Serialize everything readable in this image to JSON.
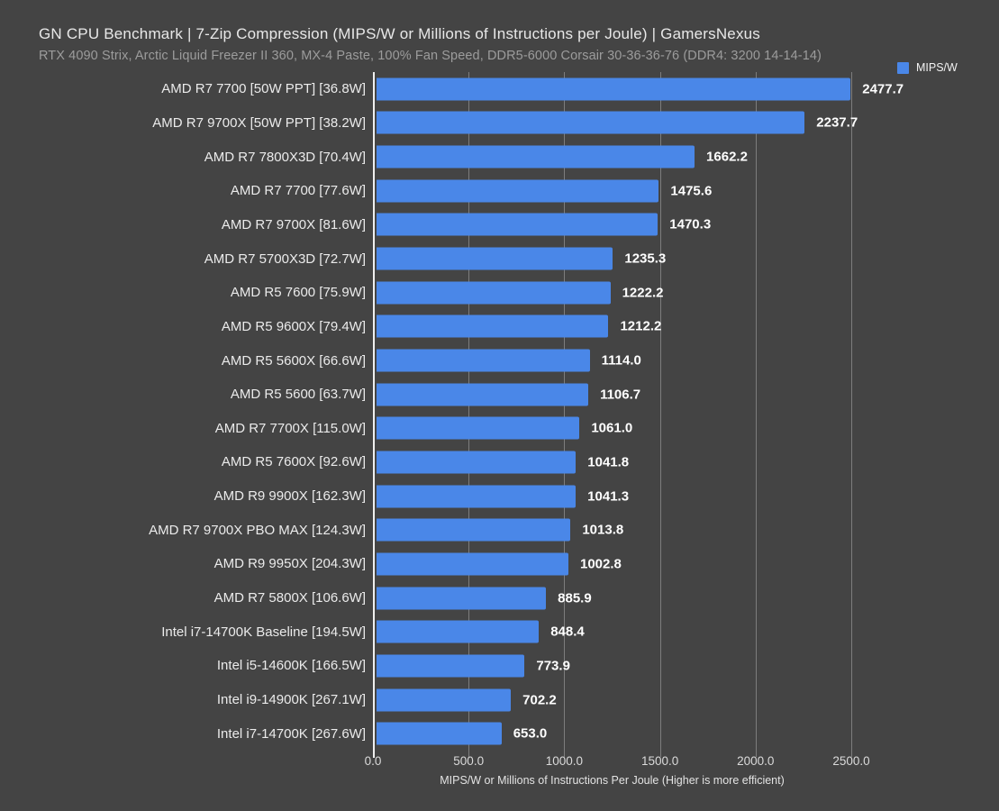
{
  "header": {
    "title": "GN CPU Benchmark | 7-Zip Compression (MIPS/W or Millions of Instructions per Joule) | GamersNexus",
    "subtitle": "RTX 4090 Strix, Arctic Liquid Freezer II 360, MX-4 Paste, 100% Fan Speed, DDR5-6000 Corsair 30-36-36-76 (DDR4: 3200 14-14-14)"
  },
  "legend": {
    "label": "MIPS/W",
    "swatch_color": "#4a87e8"
  },
  "colors": {
    "background": "#444444",
    "bar": "#4a87e8",
    "gridline": "#7d7d7d",
    "axis_line": "#efefef",
    "value_label": "#ffffff"
  },
  "chart_data": {
    "type": "bar",
    "orientation": "horizontal",
    "title": "GN CPU Benchmark | 7-Zip Compression (MIPS/W or Millions of Instructions per Joule) | GamersNexus",
    "subtitle": "RTX 4090 Strix, Arctic Liquid Freezer II 360, MX-4 Paste, 100% Fan Speed, DDR5-6000 Corsair 30-36-36-76 (DDR4: 3200 14-14-14)",
    "series_name": "MIPS/W",
    "categories": [
      "AMD R7 7700 [50W PPT] [36.8W]",
      "AMD R7 9700X [50W PPT] [38.2W]",
      "AMD R7 7800X3D [70.4W]",
      "AMD R7 7700 [77.6W]",
      "AMD R7 9700X [81.6W]",
      "AMD R7 5700X3D [72.7W]",
      "AMD R5 7600 [75.9W]",
      "AMD R5 9600X [79.4W]",
      "AMD R5 5600X [66.6W]",
      "AMD R5 5600 [63.7W]",
      "AMD R7 7700X [115.0W]",
      "AMD R5 7600X [92.6W]",
      "AMD R9 9900X [162.3W]",
      "AMD R7 9700X PBO MAX [124.3W]",
      "AMD R9 9950X [204.3W]",
      "AMD R7 5800X [106.6W]",
      "Intel i7-14700K Baseline [194.5W]",
      "Intel i5-14600K [166.5W]",
      "Intel i9-14900K [267.1W]",
      "Intel i7-14700K [267.6W]"
    ],
    "values": [
      2477.7,
      2237.7,
      1662.2,
      1475.6,
      1470.3,
      1235.3,
      1222.2,
      1212.2,
      1114.0,
      1106.7,
      1061.0,
      1041.8,
      1041.3,
      1013.8,
      1002.8,
      885.9,
      848.4,
      773.9,
      702.2,
      653.0
    ],
    "value_labels": [
      "2477.7",
      "2237.7",
      "1662.2",
      "1475.6",
      "1470.3",
      "1235.3",
      "1222.2",
      "1212.2",
      "1114.0",
      "1106.7",
      "1061.0",
      "1041.8",
      "1041.3",
      "1013.8",
      "1002.8",
      "885.9",
      "848.4",
      "773.9",
      "702.2",
      "653.0"
    ],
    "xlabel": "MIPS/W or Millions of Instructions Per Joule (Higher is more efficient)",
    "x_tick_values": [
      0,
      500,
      1000,
      1500,
      2000,
      2500
    ],
    "x_tick_labels": [
      "0.0",
      "500.0",
      "1000.0",
      "1500.0",
      "2000.0",
      "2500.0"
    ],
    "xlim": [
      0,
      2500
    ],
    "grid": true,
    "legend_position": "top-right",
    "bar_color": "#4a87e8"
  }
}
